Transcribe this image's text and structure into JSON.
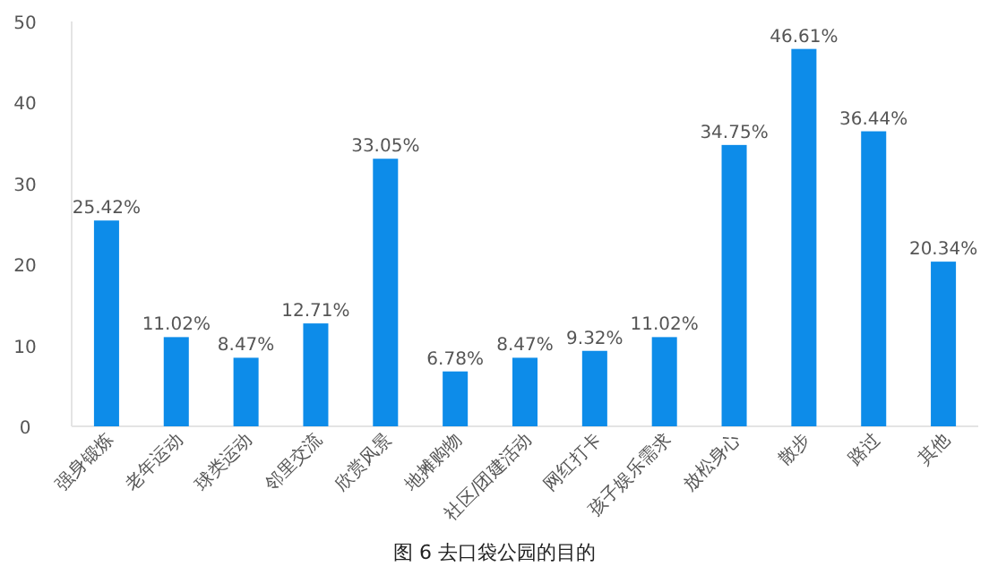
{
  "chart_data": {
    "type": "bar",
    "categories": [
      "强身锻炼",
      "老年运动",
      "球类运动",
      "邻里交流",
      "欣赏风景",
      "地摊购物",
      "社区/团建活动",
      "网红打卡",
      "孩子娱乐需求",
      "放松身心",
      "散步",
      "路过",
      "其他"
    ],
    "values": [
      25.42,
      11.02,
      8.47,
      12.71,
      33.05,
      6.78,
      8.47,
      9.32,
      11.02,
      34.75,
      46.61,
      36.44,
      20.34
    ],
    "value_labels": [
      "25.42%",
      "11.02%",
      "8.47%",
      "12.71%",
      "33.05%",
      "6.78%",
      "8.47%",
      "9.32%",
      "11.02%",
      "34.75%",
      "46.61%",
      "36.44%",
      "20.34%"
    ],
    "color": "#0d8ce9",
    "ylim": [
      0,
      50
    ],
    "yticks": [
      0,
      10,
      20,
      30,
      40,
      50
    ],
    "grid": false,
    "annotations": [
      "图 6  去口袋公园的目的"
    ]
  }
}
